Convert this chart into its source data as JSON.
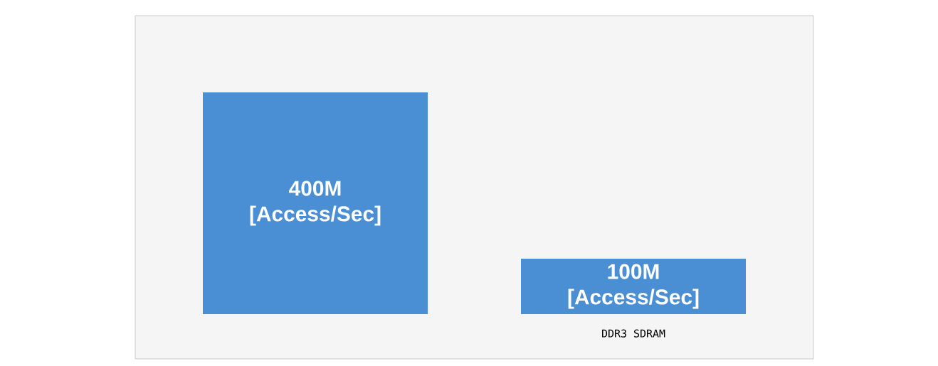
{
  "chart_data": {
    "type": "bar",
    "categories": [
      null,
      "DDR3 SDRAM"
    ],
    "values": [
      400,
      100
    ],
    "value_labels": [
      "400M [Access/Sec]",
      "100M [Access/Sec]"
    ],
    "color": "#4a8fd4"
  }
}
